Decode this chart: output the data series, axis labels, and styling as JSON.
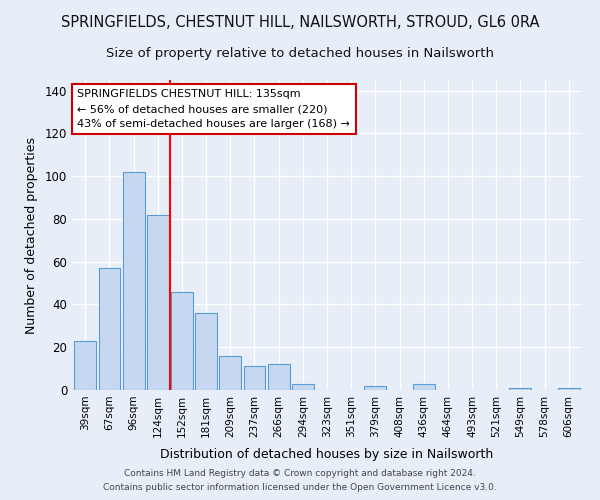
{
  "title": "SPRINGFIELDS, CHESTNUT HILL, NAILSWORTH, STROUD, GL6 0RA",
  "subtitle": "Size of property relative to detached houses in Nailsworth",
  "xlabel": "Distribution of detached houses by size in Nailsworth",
  "ylabel": "Number of detached properties",
  "categories": [
    "39sqm",
    "67sqm",
    "96sqm",
    "124sqm",
    "152sqm",
    "181sqm",
    "209sqm",
    "237sqm",
    "266sqm",
    "294sqm",
    "323sqm",
    "351sqm",
    "379sqm",
    "408sqm",
    "436sqm",
    "464sqm",
    "493sqm",
    "521sqm",
    "549sqm",
    "578sqm",
    "606sqm"
  ],
  "values": [
    23,
    57,
    102,
    82,
    46,
    36,
    16,
    11,
    12,
    3,
    0,
    0,
    2,
    0,
    3,
    0,
    0,
    0,
    1,
    0,
    1
  ],
  "bar_color": "#c5d8f0",
  "bar_edge_color": "#5b9bd5",
  "red_line_x": 3.5,
  "annotation_line1": "SPRINGFIELDS CHESTNUT HILL: 135sqm",
  "annotation_line2": "← 56% of detached houses are smaller (220)",
  "annotation_line3": "43% of semi-detached houses are larger (168) →",
  "annotation_box_color": "#ffffff",
  "annotation_box_edge": "#cc0000",
  "ylim": [
    0,
    145
  ],
  "yticks": [
    0,
    20,
    40,
    60,
    80,
    100,
    120,
    140
  ],
  "footer1": "Contains HM Land Registry data © Crown copyright and database right 2024.",
  "footer2": "Contains public sector information licensed under the Open Government Licence v3.0.",
  "bg_color": "#e8eef8",
  "title_fontsize": 10.5,
  "subtitle_fontsize": 9.5,
  "ylabel_fontsize": 9,
  "xlabel_fontsize": 9
}
